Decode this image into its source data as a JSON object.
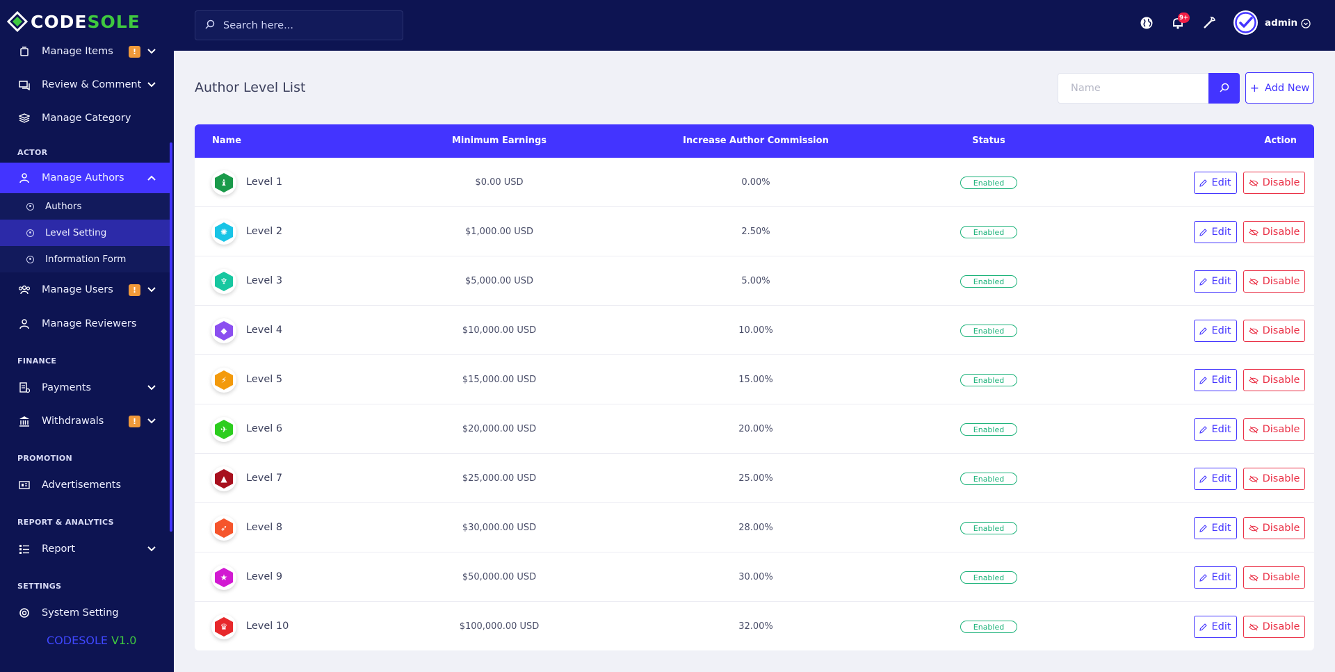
{
  "brand": {
    "logo_white": "CODE",
    "logo_green": "SOLE",
    "version_name": "CODESOLE",
    "version_num": "V1.0"
  },
  "sidebar": {
    "items_top": [
      {
        "label": "Manage Items",
        "icon": "box-icon",
        "badge": "!",
        "chevron": true
      },
      {
        "label": "Review & Comment",
        "icon": "comment-icon",
        "chevron": true
      },
      {
        "label": "Manage Category",
        "icon": "layers-icon"
      }
    ],
    "section_actor": "ACTOR",
    "manage_authors": {
      "label": "Manage Authors",
      "icon": "user-icon"
    },
    "submenu": [
      {
        "label": "Authors"
      },
      {
        "label": "Level Setting",
        "active": true
      },
      {
        "label": "Information Form"
      }
    ],
    "manage_users": {
      "label": "Manage Users",
      "badge": "!"
    },
    "manage_reviewers": {
      "label": "Manage Reviewers"
    },
    "section_finance": "FINANCE",
    "payments": {
      "label": "Payments"
    },
    "withdrawals": {
      "label": "Withdrawals",
      "badge": "!"
    },
    "section_promotion": "PROMOTION",
    "advertisements": {
      "label": "Advertisements"
    },
    "section_report": "REPORT & ANALYTICS",
    "report": {
      "label": "Report"
    },
    "section_settings": "SETTINGS",
    "system_setting": {
      "label": "System Setting"
    }
  },
  "topbar": {
    "search_placeholder": "Search here...",
    "notif_count": "9+",
    "admin_name": "admin"
  },
  "main": {
    "title": "Author Level List",
    "name_placeholder": "Name",
    "add_new": "Add New",
    "columns": [
      "Name",
      "Minimum Earnings",
      "Increase Author Commission",
      "Status",
      "Action"
    ],
    "edit_label": "Edit",
    "disable_label": "Disable",
    "rows": [
      {
        "name": "Level 1",
        "earn": "$0.00 USD",
        "comm": "0.00%",
        "status": "Enabled",
        "color": "#1a9a4a",
        "glyph": "♝"
      },
      {
        "name": "Level 2",
        "earn": "$1,000.00 USD",
        "comm": "2.50%",
        "status": "Enabled",
        "color": "#19c4e6",
        "glyph": "✺"
      },
      {
        "name": "Level 3",
        "earn": "$5,000.00 USD",
        "comm": "5.00%",
        "status": "Enabled",
        "color": "#17c7a0",
        "glyph": "♆"
      },
      {
        "name": "Level 4",
        "earn": "$10,000.00 USD",
        "comm": "10.00%",
        "status": "Enabled",
        "color": "#8b4ff0",
        "glyph": "◆"
      },
      {
        "name": "Level 5",
        "earn": "$15,000.00 USD",
        "comm": "15.00%",
        "status": "Enabled",
        "color": "#f39a0c",
        "glyph": "⚡"
      },
      {
        "name": "Level 6",
        "earn": "$20,000.00 USD",
        "comm": "20.00%",
        "status": "Enabled",
        "color": "#2ccd1e",
        "glyph": "✈"
      },
      {
        "name": "Level 7",
        "earn": "$25,000.00 USD",
        "comm": "25.00%",
        "status": "Enabled",
        "color": "#a8101e",
        "glyph": "▲"
      },
      {
        "name": "Level 8",
        "earn": "$30,000.00 USD",
        "comm": "28.00%",
        "status": "Enabled",
        "color": "#f5552c",
        "glyph": "➶"
      },
      {
        "name": "Level 9",
        "earn": "$50,000.00 USD",
        "comm": "30.00%",
        "status": "Enabled",
        "color": "#d21ad2",
        "glyph": "★"
      },
      {
        "name": "Level 10",
        "earn": "$100,000.00 USD",
        "comm": "32.00%",
        "status": "Enabled",
        "color": "#e7282b",
        "glyph": "♛"
      }
    ]
  }
}
